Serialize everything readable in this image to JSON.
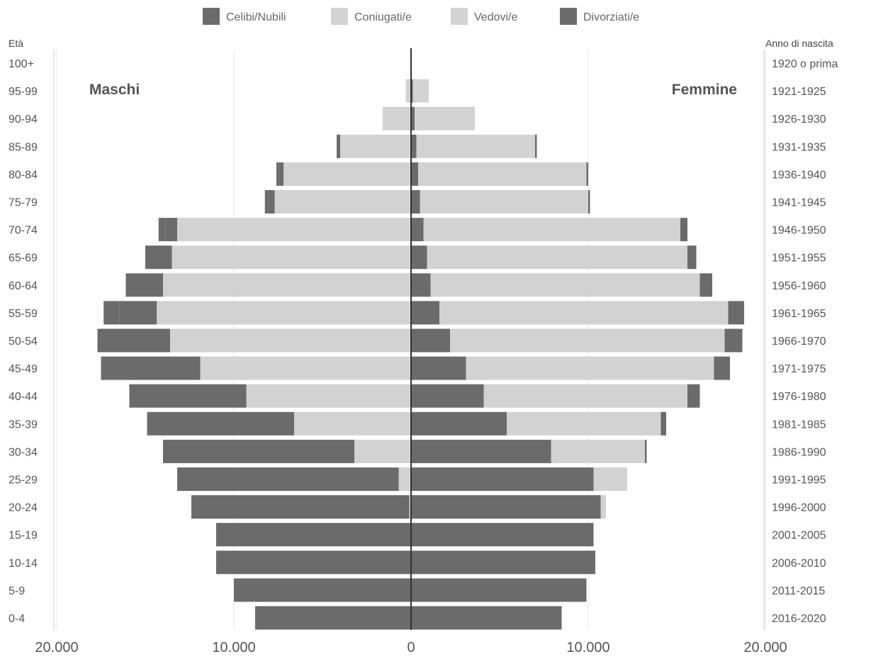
{
  "chart_data": {
    "type": "bar",
    "subtype": "population-pyramid",
    "legend_position": "top-center",
    "grid": true,
    "y_axis_left_title": "Età",
    "y_axis_right_title": "Anno di nascita",
    "left_group_label": "Maschi",
    "right_group_label": "Femmine",
    "xlim": [
      -20000,
      20000
    ],
    "x_ticks": [
      {
        "value": -20000,
        "label": "20.000"
      },
      {
        "value": -10000,
        "label": "10.000"
      },
      {
        "value": 0,
        "label": "0"
      },
      {
        "value": 10000,
        "label": "10.000"
      },
      {
        "value": 20000,
        "label": "20.000"
      }
    ],
    "categories": [
      "100+",
      "95-99",
      "90-94",
      "85-89",
      "80-84",
      "75-79",
      "70-74",
      "65-69",
      "60-64",
      "55-59",
      "50-54",
      "45-49",
      "40-44",
      "35-39",
      "30-34",
      "25-29",
      "20-24",
      "15-19",
      "10-14",
      "5-9",
      "0-4"
    ],
    "birth_years": [
      "1920 o prima",
      "1921-1925",
      "1926-1930",
      "1931-1935",
      "1936-1940",
      "1941-1945",
      "1946-1950",
      "1951-1955",
      "1956-1960",
      "1961-1965",
      "1966-1970",
      "1971-1975",
      "1976-1980",
      "1981-1985",
      "1986-1990",
      "1991-1995",
      "1996-2000",
      "2001-2005",
      "2006-2010",
      "2011-2015",
      "2016-2020"
    ],
    "series": [
      {
        "name": "Celibi/Nubili",
        "color": "#6b6b6b"
      },
      {
        "name": "Coniugati/e",
        "color": "#d2d2d2"
      },
      {
        "name": "Vedovi/e",
        "color": "#d2d2d2"
      },
      {
        "name": "Divorziati/e",
        "color": "#6b6b6b"
      }
    ],
    "males": {
      "Celibi/Nubili": [
        0,
        0,
        0,
        100,
        250,
        350,
        650,
        1000,
        1400,
        2100,
        3300,
        4900,
        6200,
        8100,
        10700,
        12500,
        12300,
        11000,
        11000,
        10000,
        8800
      ],
      "Coniugati/e": [
        0,
        100,
        500,
        2900,
        6900,
        7500,
        13000,
        13400,
        13900,
        14300,
        13600,
        11900,
        9300,
        6600,
        3200,
        700,
        100,
        0,
        0,
        0,
        0
      ],
      "Vedovi/e": [
        0,
        200,
        1100,
        1100,
        300,
        200,
        200,
        100,
        100,
        50,
        0,
        0,
        0,
        0,
        0,
        0,
        0,
        0,
        0,
        0,
        0
      ],
      "Divorziati/e": [
        0,
        0,
        0,
        100,
        150,
        200,
        400,
        500,
        700,
        900,
        800,
        700,
        400,
        200,
        100,
        0,
        0,
        0,
        0,
        0,
        0
      ]
    },
    "females": {
      "Celibi/Nubili": [
        0,
        100,
        200,
        300,
        400,
        500,
        700,
        900,
        1100,
        1600,
        2200,
        3100,
        4100,
        5400,
        7900,
        10300,
        10700,
        10300,
        10400,
        9900,
        8500
      ],
      "Coniugati/e": [
        0,
        200,
        600,
        2200,
        4200,
        5100,
        10000,
        11800,
        14500,
        15700,
        15200,
        13800,
        11300,
        8500,
        5100,
        1800,
        300,
        0,
        0,
        0,
        0
      ],
      "Vedovi/e": [
        0,
        700,
        2800,
        4500,
        5300,
        4400,
        4500,
        2900,
        700,
        600,
        300,
        200,
        200,
        200,
        200,
        100,
        0,
        0,
        0,
        0,
        0
      ],
      "Divorziati/e": [
        0,
        0,
        0,
        100,
        100,
        100,
        400,
        500,
        700,
        900,
        1000,
        900,
        700,
        300,
        100,
        0,
        0,
        0,
        0,
        0,
        0
      ]
    }
  }
}
